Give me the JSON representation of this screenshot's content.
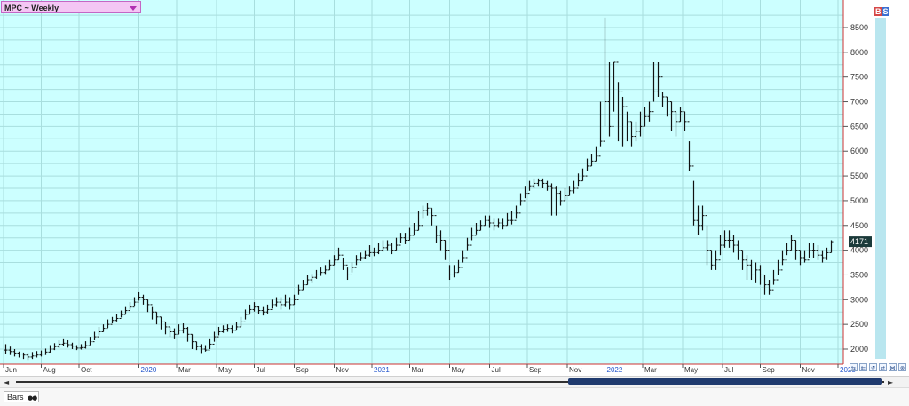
{
  "header": {
    "symbol_title": "MPC ~ Weekly"
  },
  "chart_data": {
    "type": "ohlc_bar",
    "title": "MPC ~ Weekly",
    "period": "Weekly",
    "last_price": "4171",
    "y_ticks": [
      "8500",
      "8000",
      "7500",
      "7000",
      "6500",
      "6000",
      "5500",
      "5000",
      "4500",
      "4000",
      "3500",
      "3000",
      "2500",
      "2000"
    ],
    "ylim": [
      1800,
      8900
    ],
    "x_labels": [
      {
        "label": "Jun",
        "w": 0,
        "year": false
      },
      {
        "label": "Aug",
        "w": 8.5,
        "year": false
      },
      {
        "label": "Oct",
        "w": 17,
        "year": false
      },
      {
        "label": "2020",
        "w": 30.5,
        "year": true
      },
      {
        "label": "Mar",
        "w": 39,
        "year": false
      },
      {
        "label": "May",
        "w": 48,
        "year": false
      },
      {
        "label": "Jul",
        "w": 56.5,
        "year": false
      },
      {
        "label": "Sep",
        "w": 65.5,
        "year": false
      },
      {
        "label": "Nov",
        "w": 74.5,
        "year": false
      },
      {
        "label": "2021",
        "w": 83,
        "year": true
      },
      {
        "label": "Mar",
        "w": 91.5,
        "year": false
      },
      {
        "label": "May",
        "w": 100.5,
        "year": false
      },
      {
        "label": "Jul",
        "w": 109.5,
        "year": false
      },
      {
        "label": "Sep",
        "w": 118,
        "year": false
      },
      {
        "label": "Nov",
        "w": 127,
        "year": false
      },
      {
        "label": "2022",
        "w": 135.5,
        "year": true
      },
      {
        "label": "Mar",
        "w": 144,
        "year": false
      },
      {
        "label": "May",
        "w": 153,
        "year": false
      },
      {
        "label": "Jul",
        "w": 162,
        "year": false
      },
      {
        "label": "Sep",
        "w": 170.5,
        "year": false
      },
      {
        "label": "Nov",
        "w": 179.5,
        "year": false
      },
      {
        "label": "2023",
        "w": 188,
        "year": true
      }
    ],
    "closes": [
      1980,
      1950,
      1920,
      1900,
      1880,
      1840,
      1860,
      1880,
      1900,
      1940,
      2000,
      2050,
      2100,
      2120,
      2090,
      2060,
      2020,
      2030,
      2070,
      2150,
      2250,
      2350,
      2420,
      2500,
      2580,
      2620,
      2700,
      2780,
      2850,
      2950,
      3050,
      3000,
      2900,
      2750,
      2650,
      2550,
      2450,
      2350,
      2300,
      2380,
      2420,
      2300,
      2150,
      2050,
      2000,
      1980,
      2100,
      2250,
      2350,
      2400,
      2420,
      2380,
      2450,
      2550,
      2700,
      2800,
      2850,
      2780,
      2750,
      2800,
      2900,
      2950,
      2900,
      2950,
      2900,
      3000,
      3200,
      3300,
      3400,
      3450,
      3500,
      3550,
      3600,
      3700,
      3800,
      3900,
      3700,
      3500,
      3650,
      3800,
      3850,
      3900,
      3950,
      3950,
      4000,
      4050,
      4100,
      4000,
      4100,
      4250,
      4200,
      4300,
      4400,
      4500,
      4800,
      4850,
      4700,
      4300,
      4200,
      4000,
      3500,
      3550,
      3650,
      3850,
      4100,
      4300,
      4400,
      4500,
      4600,
      4550,
      4500,
      4550,
      4500,
      4600,
      4600,
      4750,
      5000,
      5150,
      5300,
      5350,
      5400,
      5350,
      5300,
      5250,
      5150,
      5000,
      5100,
      5200,
      5250,
      5400,
      5500,
      5700,
      5800,
      5900,
      6200,
      7000,
      6500,
      7800,
      7200,
      6900,
      6600,
      6300,
      6400,
      6500,
      6700,
      6800,
      7200,
      7500,
      7100,
      7000,
      6800,
      6600,
      6800,
      6600,
      5700,
      4600,
      4500,
      4700,
      4000,
      3700,
      3800,
      4100,
      4200,
      4200,
      4100,
      4000,
      3800,
      3700,
      3500,
      3600,
      3500,
      3300,
      3200,
      3400,
      3600,
      3800,
      4000,
      4200,
      4000,
      3850,
      3800,
      4000,
      4000,
      3900,
      3850,
      3950,
      4171
    ],
    "highs": [
      2100,
      2050,
      2000,
      1950,
      1930,
      1920,
      1940,
      1960,
      1970,
      2010,
      2080,
      2120,
      2180,
      2200,
      2180,
      2130,
      2080,
      2100,
      2160,
      2250,
      2350,
      2450,
      2500,
      2600,
      2650,
      2700,
      2780,
      2850,
      2950,
      3050,
      3150,
      3100,
      3000,
      2850,
      2750,
      2650,
      2550,
      2450,
      2420,
      2500,
      2520,
      2450,
      2300,
      2150,
      2100,
      2080,
      2200,
      2350,
      2450,
      2480,
      2500,
      2480,
      2550,
      2650,
      2800,
      2900,
      2950,
      2880,
      2850,
      2900,
      3000,
      3050,
      3050,
      3100,
      3050,
      3100,
      3300,
      3400,
      3500,
      3520,
      3600,
      3650,
      3700,
      3800,
      3900,
      4050,
      3850,
      3650,
      3750,
      3900,
      3950,
      4000,
      4100,
      4050,
      4150,
      4200,
      4200,
      4150,
      4250,
      4350,
      4350,
      4450,
      4550,
      4800,
      4900,
      4950,
      4850,
      4500,
      4400,
      4200,
      3700,
      3700,
      3800,
      4000,
      4250,
      4450,
      4550,
      4600,
      4700,
      4700,
      4650,
      4650,
      4650,
      4750,
      4800,
      4900,
      5150,
      5300,
      5400,
      5450,
      5450,
      5450,
      5400,
      5350,
      5300,
      5200,
      5250,
      5300,
      5400,
      5550,
      5650,
      5850,
      5950,
      6100,
      7000,
      8700,
      7800,
      7800,
      7400,
      7100,
      6800,
      6600,
      6600,
      6800,
      6900,
      7000,
      7800,
      7800,
      7200,
      7100,
      7000,
      6800,
      6900,
      6800,
      6200,
      5400,
      4900,
      4900,
      4500,
      4000,
      4000,
      4300,
      4400,
      4400,
      4300,
      4200,
      4000,
      3900,
      3800,
      3750,
      3700,
      3500,
      3400,
      3600,
      3800,
      4000,
      4150,
      4300,
      4200,
      4000,
      4000,
      4150,
      4150,
      4100,
      4000,
      4050,
      4200
    ],
    "lows": [
      1900,
      1880,
      1850,
      1830,
      1800,
      1780,
      1800,
      1830,
      1850,
      1880,
      1930,
      1980,
      2020,
      2060,
      2030,
      2000,
      1980,
      1990,
      2010,
      2080,
      2180,
      2280,
      2350,
      2430,
      2520,
      2560,
      2640,
      2720,
      2800,
      2880,
      2980,
      2900,
      2750,
      2600,
      2500,
      2400,
      2300,
      2250,
      2200,
      2300,
      2320,
      2150,
      2000,
      1980,
      1920,
      1950,
      2000,
      2150,
      2280,
      2330,
      2350,
      2320,
      2380,
      2450,
      2600,
      2720,
      2760,
      2700,
      2680,
      2720,
      2820,
      2850,
      2800,
      2850,
      2800,
      2900,
      3100,
      3200,
      3300,
      3350,
      3420,
      3480,
      3520,
      3600,
      3700,
      3800,
      3600,
      3400,
      3550,
      3700,
      3780,
      3820,
      3870,
      3880,
      3920,
      3970,
      4000,
      3920,
      4000,
      4150,
      4120,
      4200,
      4300,
      4400,
      4650,
      4700,
      4500,
      4150,
      4000,
      3800,
      3400,
      3450,
      3550,
      3750,
      4000,
      4200,
      4320,
      4400,
      4500,
      4450,
      4400,
      4450,
      4420,
      4500,
      4520,
      4650,
      4900,
      5050,
      5200,
      5250,
      5300,
      5250,
      5200,
      4700,
      4700,
      4900,
      5000,
      5100,
      5150,
      5300,
      5400,
      5600,
      5700,
      5800,
      6100,
      6500,
      6300,
      6800,
      6200,
      6100,
      6200,
      6100,
      6200,
      6300,
      6500,
      6600,
      7000,
      7100,
      6900,
      6700,
      6400,
      6300,
      6600,
      6400,
      5600,
      4500,
      4300,
      4400,
      3700,
      3600,
      3600,
      3900,
      4050,
      4050,
      3950,
      3800,
      3600,
      3400,
      3400,
      3350,
      3300,
      3100,
      3100,
      3300,
      3500,
      3700,
      3900,
      4000,
      3800,
      3700,
      3750,
      3850,
      3850,
      3800,
      3750,
      3800,
      3950
    ]
  },
  "scrollbar": {
    "left_arrow": "◄",
    "right_arrow": "►"
  },
  "footer": {
    "bars_label": "Bars",
    "bars_icon": "●●"
  },
  "badges": {
    "b": "B",
    "s": "S"
  },
  "mini_buttons": [
    "⇆",
    "⇇",
    "↺",
    "⇄",
    "⋈",
    "⊗"
  ]
}
